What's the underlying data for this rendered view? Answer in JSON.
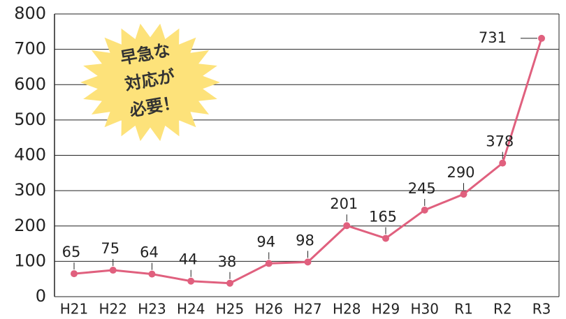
{
  "chart_data": {
    "type": "line",
    "categories": [
      "H21",
      "H22",
      "H23",
      "H24",
      "H25",
      "H26",
      "H27",
      "H28",
      "H29",
      "H30",
      "R1",
      "R2",
      "R3"
    ],
    "series": [
      {
        "color": "#e0607e",
        "values": [
          65,
          75,
          64,
          44,
          38,
          94,
          98,
          201,
          165,
          245,
          290,
          378,
          731
        ]
      }
    ],
    "ylim": [
      0,
      800
    ],
    "yticks": [
      0,
      100,
      200,
      300,
      400,
      500,
      600,
      700,
      800
    ],
    "grid": true,
    "annotation": [
      "早急な",
      "対応が",
      "必要！"
    ]
  }
}
